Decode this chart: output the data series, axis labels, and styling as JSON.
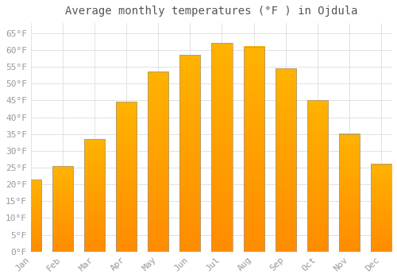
{
  "title": "Average monthly temperatures (°F ) in Ojdula",
  "months": [
    "Jan",
    "Feb",
    "Mar",
    "Apr",
    "May",
    "Jun",
    "Jul",
    "Aug",
    "Sep",
    "Oct",
    "Nov",
    "Dec"
  ],
  "values": [
    21.5,
    25.5,
    33.5,
    44.5,
    53.5,
    58.5,
    62.0,
    61.0,
    54.5,
    45.0,
    35.0,
    26.0
  ],
  "bar_color_top": "#FFB300",
  "bar_color_bottom": "#FF8C00",
  "bar_edge_color": "#999999",
  "background_color": "#FFFFFF",
  "grid_color": "#DDDDDD",
  "text_color": "#999999",
  "title_color": "#555555",
  "ylim": [
    0,
    68
  ],
  "yticks": [
    0,
    5,
    10,
    15,
    20,
    25,
    30,
    35,
    40,
    45,
    50,
    55,
    60,
    65
  ],
  "title_fontsize": 10,
  "tick_fontsize": 8,
  "bar_width": 0.65
}
